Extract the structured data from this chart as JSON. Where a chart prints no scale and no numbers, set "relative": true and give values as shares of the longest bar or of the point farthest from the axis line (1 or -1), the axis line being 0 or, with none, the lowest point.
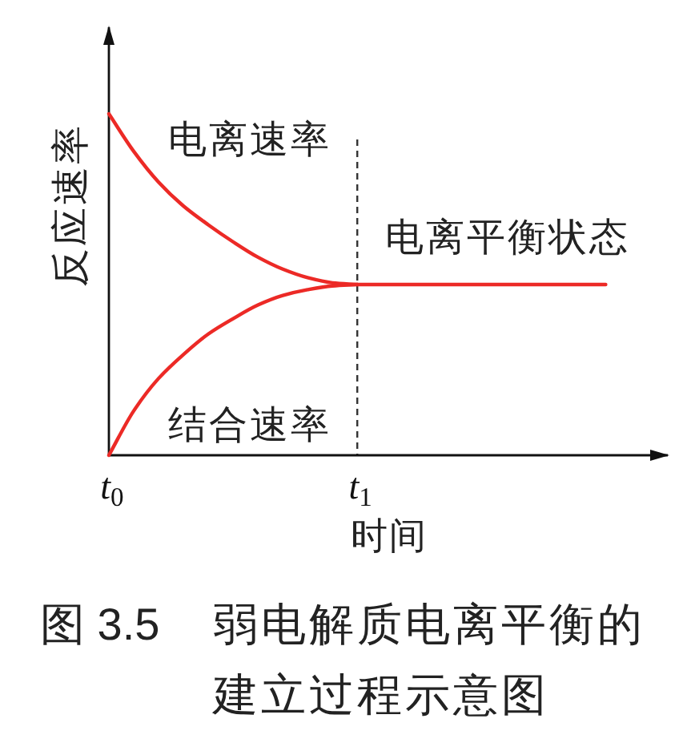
{
  "chart_data": {
    "type": "line",
    "title": "图 3.5 弱电解质电离平衡的建立过程示意图",
    "xlabel": "时间",
    "ylabel": "反应速率",
    "relative": true,
    "xlim": [
      0,
      2.25
    ],
    "xticks": [
      {
        "value": 0,
        "label": "*t*$_{0}$"
      },
      {
        "value": 1,
        "label": "*t*$_{1}$"
      }
    ],
    "series": [
      {
        "name": "电离速率",
        "color": "#ec2a26",
        "x": [
          0,
          0.1,
          0.2,
          0.3,
          0.4,
          0.5,
          0.6,
          0.7,
          0.8,
          0.9,
          1
        ],
        "values": [
          1,
          0.89,
          0.8,
          0.73,
          0.675,
          0.625,
          0.58,
          0.545,
          0.52,
          0.505,
          0.5
        ]
      },
      {
        "name": "结合速率",
        "color": "#ec2a26",
        "x": [
          0,
          0.1,
          0.2,
          0.3,
          0.4,
          0.5,
          0.6,
          0.7,
          0.8,
          0.9,
          1
        ],
        "values": [
          0,
          0.13,
          0.225,
          0.295,
          0.355,
          0.4,
          0.44,
          0.468,
          0.485,
          0.496,
          0.5
        ]
      },
      {
        "name": "电离平衡状态",
        "color": "#ec2a26",
        "x": [
          1,
          2
        ],
        "values": [
          0.5,
          0.5
        ]
      }
    ],
    "ref_lines": [
      {
        "axis": "x",
        "value": 1,
        "color": "#333333",
        "line_style": "dashed"
      }
    ]
  }
}
